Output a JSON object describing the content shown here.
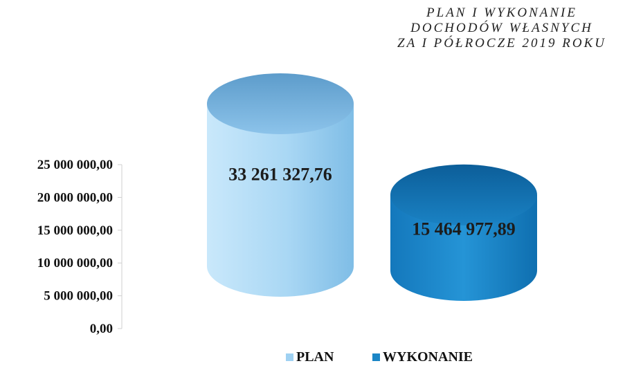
{
  "chart_data": {
    "type": "bar",
    "title_lines": [
      "PLAN I WYKONANIE",
      "DOCHODÓW WŁASNYCH",
      "ZA I PÓŁROCZE 2019 ROKU"
    ],
    "categories": [
      "PLAN",
      "WYKONANIE"
    ],
    "values": [
      33261327.76,
      15464977.89
    ],
    "value_labels": [
      "33 261 327,76",
      "15 464 977,89"
    ],
    "y_ticks": [
      {
        "value": 0,
        "label": "0,00"
      },
      {
        "value": 5000000,
        "label": "5 000 000,00"
      },
      {
        "value": 10000000,
        "label": "10 000 000,00"
      },
      {
        "value": 15000000,
        "label": "15 000 000,00"
      },
      {
        "value": 20000000,
        "label": "20 000 000,00"
      },
      {
        "value": 25000000,
        "label": "25 000 000,00"
      }
    ],
    "ylim": [
      0,
      25000000
    ],
    "legend": [
      {
        "label": "PLAN",
        "color": "#9fd1f2"
      },
      {
        "label": "WYKONANIE",
        "color": "#1b86c6"
      }
    ],
    "legend_position": "bottom",
    "grid": false
  }
}
